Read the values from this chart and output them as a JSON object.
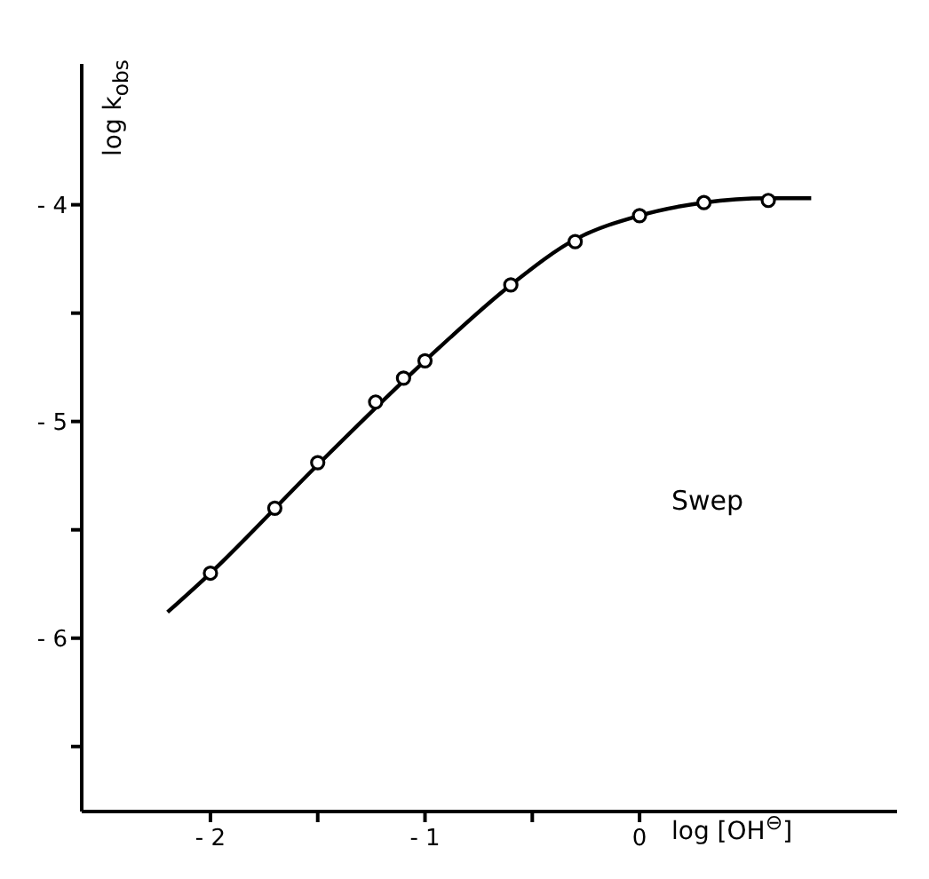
{
  "chart_data": {
    "type": "scatter",
    "xlabel": "log [OH$^{⊖}$]",
    "ylabel": "log k$_{obs}$",
    "annotations": [
      "Swep"
    ],
    "xlim": [
      -2.6,
      1.2
    ],
    "ylim": [
      -6.8,
      -3.35
    ],
    "xticks": [
      -2,
      {
        "value": -1.5,
        "label": null
      },
      -1,
      {
        "value": -0.5,
        "label": null
      },
      0
    ],
    "yticks": [
      {
        "value": -6.5,
        "label": null
      },
      -6,
      {
        "value": -5.5,
        "label": null
      },
      -5,
      {
        "value": -4.5,
        "label": null
      },
      -4
    ],
    "grid": false,
    "legend": false,
    "series": [
      {
        "color": "#000000",
        "marker": "circle",
        "x": [
          -2,
          -1.7,
          -1.5,
          -1.23,
          -1.1,
          -1.0,
          -0.6,
          -0.3,
          0,
          0.3,
          0.6
        ],
        "values": [
          -5.7,
          -5.4,
          -5.19,
          -4.91,
          -4.8,
          -4.72,
          -4.37,
          -4.17,
          -4.05,
          -3.99,
          -3.98
        ]
      },
      {
        "type": "line",
        "color": "#000000",
        "marker": "none",
        "line_style": "solid",
        "x": [
          -2.2,
          -2,
          -1.5,
          -1,
          -0.6,
          -0.3,
          0,
          0.3,
          0.6,
          0.8
        ],
        "values": [
          -5.88,
          -5.7,
          -5.2,
          -4.72,
          -4.37,
          -4.16,
          -4.05,
          -3.99,
          -3.97,
          -3.97
        ]
      }
    ]
  }
}
